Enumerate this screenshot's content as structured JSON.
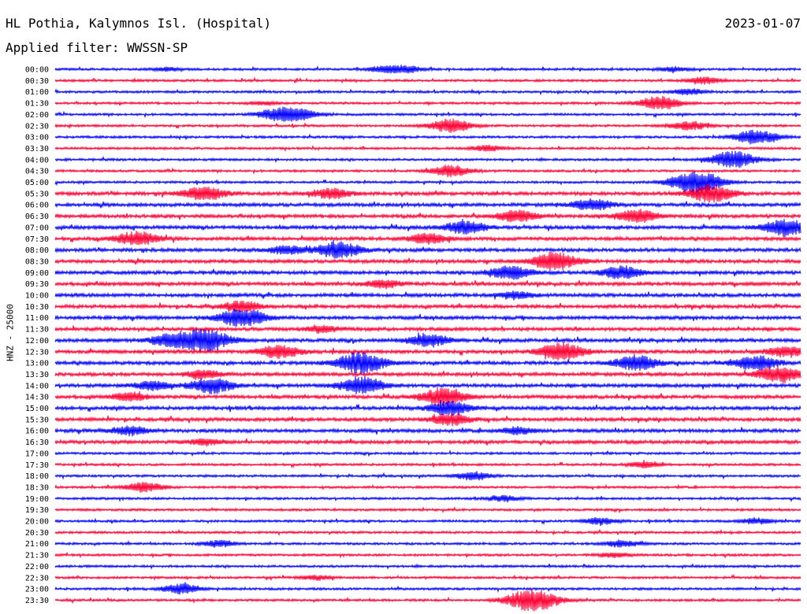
{
  "header": {
    "station": "HL Pothia, Kalymnos Isl. (Hospital)",
    "date": "2023-01-07",
    "filter": "Applied filter: WWSSN-SP"
  },
  "colors": {
    "odd_trace": "#0000ff",
    "even_trace": "#ff0033",
    "background": "#ffffff",
    "text": "#000000"
  },
  "chart_data": {
    "type": "line",
    "title": "HL Pothia, Kalymnos Isl. (Hospital)",
    "subtitle": "Applied filter: WWSSN-SP",
    "ylabel": "HNZ - 25000",
    "xlabel": "",
    "grid": false,
    "legend": "none",
    "rows": [
      {
        "time": "00:00",
        "events": [
          [
            0.44,
            0.5
          ],
          [
            0.47,
            0.6
          ],
          [
            0.83,
            0.4
          ],
          [
            0.15,
            0.3
          ]
        ]
      },
      {
        "time": "00:30",
        "events": [
          [
            0.87,
            0.6
          ]
        ]
      },
      {
        "time": "01:00",
        "events": [
          [
            0.85,
            0.5
          ]
        ]
      },
      {
        "time": "01:30",
        "events": [
          [
            0.81,
            1.2
          ],
          [
            0.28,
            0.3
          ]
        ]
      },
      {
        "time": "02:00",
        "events": [
          [
            0.3,
            1.1
          ],
          [
            0.33,
            0.8
          ]
        ]
      },
      {
        "time": "02:30",
        "events": [
          [
            0.53,
            1.2
          ],
          [
            0.85,
            0.8
          ]
        ]
      },
      {
        "time": "03:00",
        "events": [
          [
            0.94,
            1.3
          ]
        ]
      },
      {
        "time": "03:30",
        "events": [
          [
            0.58,
            0.5
          ]
        ]
      },
      {
        "time": "04:00",
        "events": [
          [
            0.91,
            1.5
          ]
        ]
      },
      {
        "time": "04:30",
        "events": [
          [
            0.53,
            1.0
          ]
        ]
      },
      {
        "time": "05:00",
        "events": [
          [
            0.86,
            2.0
          ]
        ]
      },
      {
        "time": "05:30",
        "events": [
          [
            0.2,
            1.2
          ],
          [
            0.37,
            0.9
          ],
          [
            0.88,
            1.5
          ]
        ]
      },
      {
        "time": "06:00",
        "events": [
          [
            0.72,
            1.0
          ]
        ]
      },
      {
        "time": "06:30",
        "events": [
          [
            0.62,
            1.0
          ],
          [
            0.78,
            1.1
          ]
        ]
      },
      {
        "time": "07:00",
        "events": [
          [
            0.55,
            1.1
          ],
          [
            0.98,
            1.4
          ]
        ]
      },
      {
        "time": "07:30",
        "events": [
          [
            0.11,
            1.2
          ],
          [
            0.5,
            0.9
          ]
        ]
      },
      {
        "time": "08:00",
        "events": [
          [
            0.38,
            1.4
          ],
          [
            0.31,
            0.7
          ]
        ]
      },
      {
        "time": "08:30",
        "events": [
          [
            0.67,
            1.5
          ]
        ]
      },
      {
        "time": "09:00",
        "events": [
          [
            0.61,
            1.2
          ],
          [
            0.76,
            1.1
          ]
        ]
      },
      {
        "time": "09:30",
        "events": [
          [
            0.44,
            0.7
          ]
        ]
      },
      {
        "time": "10:00",
        "events": [
          [
            0.62,
            0.6
          ]
        ]
      },
      {
        "time": "10:30",
        "events": [
          [
            0.25,
            0.9
          ]
        ]
      },
      {
        "time": "11:00",
        "events": [
          [
            0.25,
            1.6
          ]
        ]
      },
      {
        "time": "11:30",
        "events": [
          [
            0.36,
            0.6
          ]
        ]
      },
      {
        "time": "12:00",
        "events": [
          [
            0.2,
            2.0
          ],
          [
            0.15,
            0.9
          ],
          [
            0.5,
            1.1
          ]
        ]
      },
      {
        "time": "12:30",
        "events": [
          [
            0.3,
            1.2
          ],
          [
            0.68,
            1.5
          ],
          [
            0.98,
            0.9
          ]
        ]
      },
      {
        "time": "13:00",
        "events": [
          [
            0.41,
            1.8
          ],
          [
            0.78,
            1.3
          ],
          [
            0.94,
            1.3
          ]
        ]
      },
      {
        "time": "13:30",
        "events": [
          [
            0.2,
            0.7
          ],
          [
            0.97,
            1.4
          ]
        ]
      },
      {
        "time": "14:00",
        "events": [
          [
            0.21,
            1.3
          ],
          [
            0.41,
            1.5
          ],
          [
            0.13,
            0.8
          ]
        ]
      },
      {
        "time": "14:30",
        "events": [
          [
            0.52,
            1.5
          ],
          [
            0.1,
            0.7
          ]
        ]
      },
      {
        "time": "15:00",
        "events": [
          [
            0.53,
            1.2
          ]
        ]
      },
      {
        "time": "15:30",
        "events": [
          [
            0.53,
            1.0
          ]
        ]
      },
      {
        "time": "16:00",
        "events": [
          [
            0.1,
            0.8
          ],
          [
            0.62,
            0.6
          ]
        ]
      },
      {
        "time": "16:30",
        "events": [
          [
            0.2,
            0.5
          ]
        ]
      },
      {
        "time": "17:00",
        "events": []
      },
      {
        "time": "17:30",
        "events": [
          [
            0.79,
            0.5
          ]
        ]
      },
      {
        "time": "18:00",
        "events": [
          [
            0.56,
            0.7
          ]
        ]
      },
      {
        "time": "18:30",
        "events": [
          [
            0.12,
            0.9
          ]
        ]
      },
      {
        "time": "19:00",
        "events": [
          [
            0.6,
            0.5
          ]
        ]
      },
      {
        "time": "19:30",
        "events": []
      },
      {
        "time": "20:00",
        "events": [
          [
            0.73,
            0.6
          ],
          [
            0.94,
            0.5
          ]
        ]
      },
      {
        "time": "20:30",
        "events": []
      },
      {
        "time": "21:00",
        "events": [
          [
            0.22,
            0.6
          ],
          [
            0.76,
            0.6
          ]
        ]
      },
      {
        "time": "21:30",
        "events": [
          [
            0.75,
            0.4
          ]
        ]
      },
      {
        "time": "22:00",
        "events": []
      },
      {
        "time": "22:30",
        "events": [
          [
            0.35,
            0.4
          ]
        ]
      },
      {
        "time": "23:00",
        "events": [
          [
            0.17,
            0.9
          ]
        ]
      },
      {
        "time": "23:30",
        "events": [
          [
            0.64,
            2.0
          ]
        ]
      }
    ]
  }
}
